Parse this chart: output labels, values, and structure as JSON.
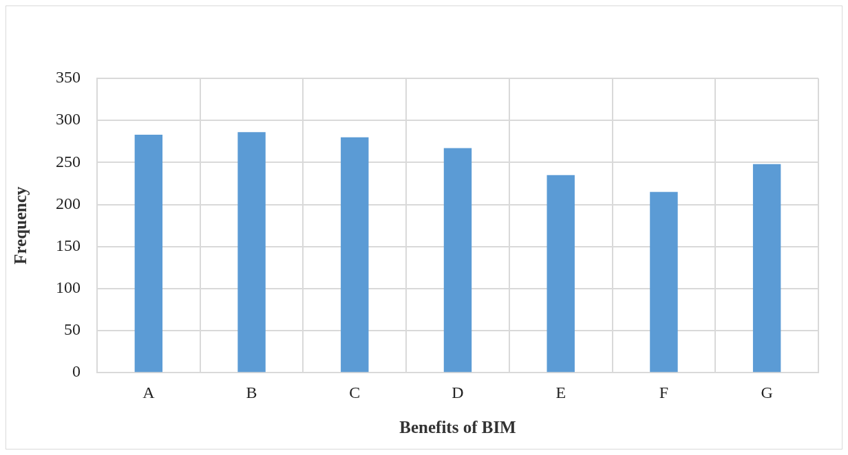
{
  "chart_data": {
    "type": "bar",
    "xlabel": "Benefits of BIM",
    "ylabel": "Frequency",
    "categories": [
      "A",
      "B",
      "C",
      "D",
      "E",
      "F",
      "G"
    ],
    "values": [
      283,
      286,
      280,
      267,
      235,
      215,
      248
    ],
    "color": "#5b9bd5",
    "ylim": [
      0,
      350
    ],
    "yticks": [
      0,
      50,
      100,
      150,
      200,
      250,
      300,
      350
    ],
    "grid": true
  }
}
